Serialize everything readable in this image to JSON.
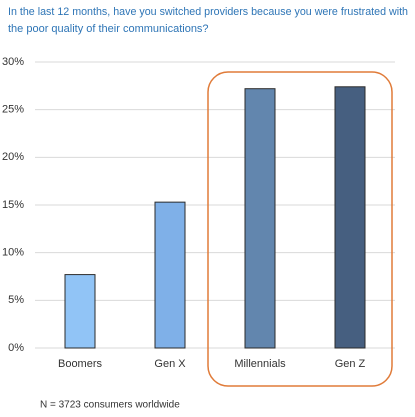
{
  "chart_data": {
    "type": "bar",
    "title": [
      "In the last 12 months, have you switched providers because you were frustrated with",
      "the poor quality of their communications?"
    ],
    "categories": [
      "Boomers",
      "Gen X",
      "Millennials",
      "Gen Z"
    ],
    "values": [
      7.7,
      15.3,
      27.2,
      27.4
    ],
    "colors": [
      "#91c4f6",
      "#7fb0e8",
      "#6286ae",
      "#465f80"
    ],
    "ylim": [
      0,
      30
    ],
    "yticks": [
      {
        "value": 0,
        "label": "0%"
      },
      {
        "value": 5,
        "label": "5%"
      },
      {
        "value": 10,
        "label": "10%"
      },
      {
        "value": 15,
        "label": "15%"
      },
      {
        "value": 20,
        "label": "20%"
      },
      {
        "value": 25,
        "label": "25%"
      },
      {
        "value": 30,
        "label": "30%"
      }
    ],
    "grid": true,
    "note": "N = 3723 consumers worldwide"
  }
}
